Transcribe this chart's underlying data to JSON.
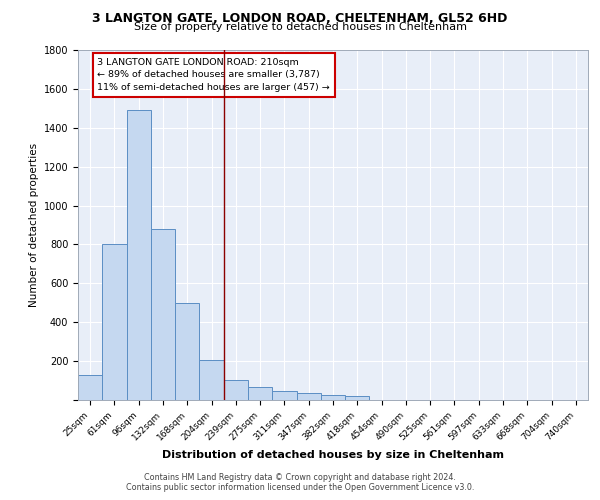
{
  "title1": "3 LANGTON GATE, LONDON ROAD, CHELTENHAM, GL52 6HD",
  "title2": "Size of property relative to detached houses in Cheltenham",
  "xlabel": "Distribution of detached houses by size in Cheltenham",
  "ylabel": "Number of detached properties",
  "categories": [
    "25sqm",
    "61sqm",
    "96sqm",
    "132sqm",
    "168sqm",
    "204sqm",
    "239sqm",
    "275sqm",
    "311sqm",
    "347sqm",
    "382sqm",
    "418sqm",
    "454sqm",
    "490sqm",
    "525sqm",
    "561sqm",
    "597sqm",
    "633sqm",
    "668sqm",
    "704sqm",
    "740sqm"
  ],
  "values": [
    130,
    800,
    1490,
    880,
    500,
    205,
    105,
    65,
    48,
    35,
    27,
    20,
    0,
    0,
    0,
    0,
    0,
    0,
    0,
    0,
    0
  ],
  "bar_color": "#c5d8f0",
  "bar_edge_color": "#5b8ec4",
  "background_color": "#e8eef8",
  "grid_color": "#ffffff",
  "vline_x": 5.5,
  "vline_color": "#8b0000",
  "annotation_text": "3 LANGTON GATE LONDON ROAD: 210sqm\n← 89% of detached houses are smaller (3,787)\n11% of semi-detached houses are larger (457) →",
  "annotation_box_color": "#ffffff",
  "annotation_box_edge": "#cc0000",
  "ylim": [
    0,
    1800
  ],
  "yticks": [
    0,
    200,
    400,
    600,
    800,
    1000,
    1200,
    1400,
    1600,
    1800
  ],
  "footer1": "Contains HM Land Registry data © Crown copyright and database right 2024.",
  "footer2": "Contains public sector information licensed under the Open Government Licence v3.0.",
  "fig_bg": "#ffffff"
}
